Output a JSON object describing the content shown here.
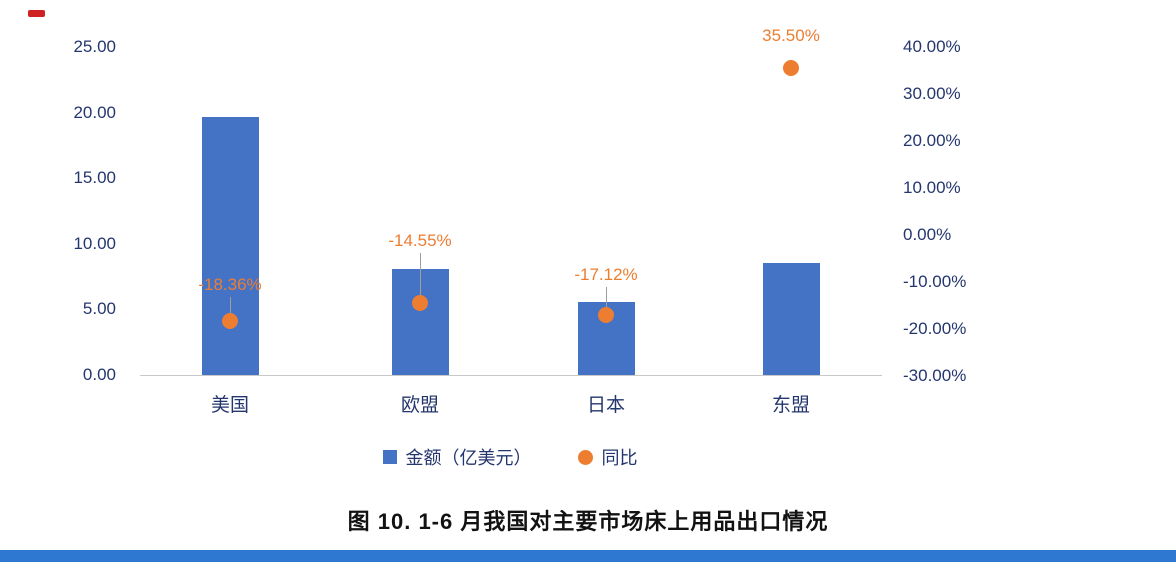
{
  "page": {
    "title": "图 10. 1-6 月我国对主要市场床上用品出口情况"
  },
  "chart_data": {
    "type": "bar",
    "title": "图 10. 1-6 月我国对主要市场床上用品出口情况",
    "categories": [
      "美国",
      "欧盟",
      "日本",
      "东盟"
    ],
    "series": [
      {
        "name": "金额（亿美元）",
        "type": "bar",
        "axis": "left",
        "color": "#4472C4",
        "values": [
          19.7,
          8.1,
          5.6,
          8.5
        ]
      },
      {
        "name": "同比",
        "type": "point",
        "axis": "right",
        "color": "#ED7D31",
        "values": [
          -18.36,
          -14.55,
          -17.12,
          35.5
        ],
        "labels": [
          "-18.36%",
          "-14.55%",
          "-17.12%",
          "35.50%"
        ]
      }
    ],
    "left_axis": {
      "ticks": [
        "25.00",
        "20.00",
        "15.00",
        "10.00",
        "5.00",
        "0.00"
      ],
      "tick_values": [
        25,
        20,
        15,
        10,
        5,
        0
      ],
      "ylim": [
        0,
        25
      ]
    },
    "right_axis": {
      "ticks": [
        "40.00%",
        "30.00%",
        "20.00%",
        "10.00%",
        "0.00%",
        "-10.00%",
        "-20.00%",
        "-30.00%"
      ],
      "tick_values": [
        40,
        30,
        20,
        10,
        0,
        -10,
        -20,
        -30
      ],
      "ylim": [
        -30,
        40
      ]
    },
    "legend": [
      {
        "label": "金额（亿美元）",
        "marker": "square"
      },
      {
        "label": "同比",
        "marker": "circle"
      }
    ],
    "legend_position": "bottom",
    "grid": "baseline-only"
  },
  "colors": {
    "bar": "#4472C4",
    "point": "#ED7D31",
    "axis_text": "#24366e",
    "baseline": "#c9c9c9",
    "bottom_strip": "#2e78d2",
    "red_mark": "#cf2121"
  },
  "icons": {
    "bar_swatch": "square-icon",
    "point_swatch": "circle-icon"
  }
}
